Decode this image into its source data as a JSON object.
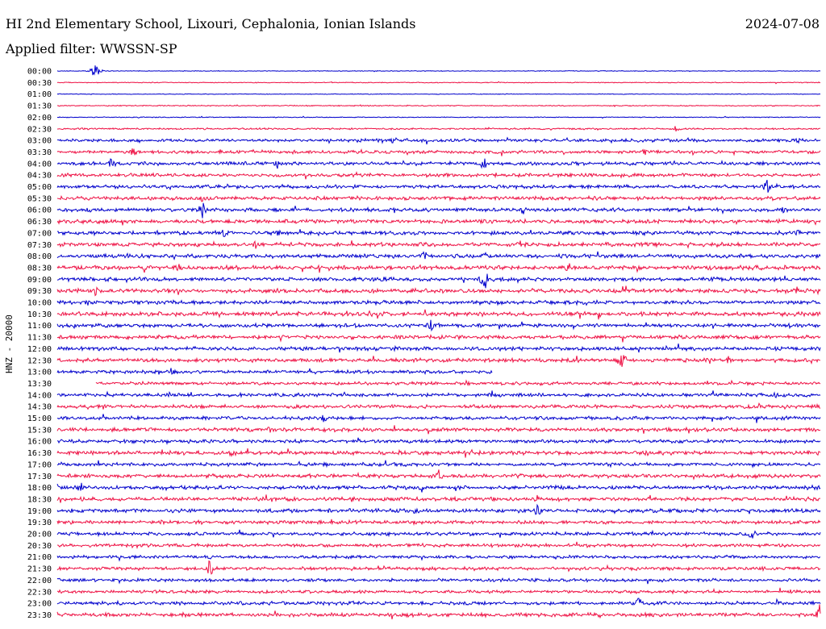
{
  "header": {
    "title": "HI 2nd Elementary School, Lixouri, Cephalonia, Ionian Islands",
    "date": "2024-07-08",
    "filter_label": "Applied filter: WWSSN-SP"
  },
  "chart_data": {
    "type": "line",
    "title": "HI 2nd Elementary School, Lixouri, Cephalonia, Ionian Islands",
    "subtitle": "Applied filter: WWSSN-SP",
    "ylabel": "HNZ - 20000",
    "xlabel": "",
    "row_labels": [
      "00:00",
      "00:30",
      "01:00",
      "01:30",
      "02:00",
      "02:30",
      "03:00",
      "03:30",
      "04:00",
      "04:30",
      "05:00",
      "05:30",
      "06:00",
      "06:30",
      "07:00",
      "07:30",
      "08:00",
      "08:30",
      "09:00",
      "09:30",
      "10:00",
      "10:30",
      "11:00",
      "11:30",
      "12:00",
      "12:30",
      "13:00",
      "13:30",
      "14:00",
      "14:30",
      "15:00",
      "15:30",
      "16:00",
      "16:30",
      "17:00",
      "17:30",
      "18:00",
      "18:30",
      "19:00",
      "19:30",
      "20:00",
      "20:30",
      "21:00",
      "21:30",
      "22:00",
      "22:30",
      "23:00",
      "23:30"
    ],
    "row_minutes": 30,
    "series_colors": [
      "#0000cc",
      "#ee1144"
    ],
    "traces": [
      {
        "noise": 0.4,
        "events": [
          [
            0.05,
            12
          ]
        ]
      },
      {
        "noise": 0.5,
        "events": []
      },
      {
        "noise": 0.4,
        "events": []
      },
      {
        "noise": 0.6,
        "events": []
      },
      {
        "noise": 0.5,
        "events": []
      },
      {
        "noise": 1.0,
        "events": [
          [
            0.81,
            5
          ]
        ]
      },
      {
        "noise": 1.8,
        "events": [
          [
            0.44,
            8
          ],
          [
            0.97,
            5
          ]
        ]
      },
      {
        "noise": 1.8,
        "events": [
          [
            0.1,
            7
          ],
          [
            0.77,
            6
          ]
        ]
      },
      {
        "noise": 2.0,
        "events": [
          [
            0.07,
            8
          ],
          [
            0.29,
            10
          ],
          [
            0.56,
            8
          ]
        ]
      },
      {
        "noise": 2.0,
        "events": []
      },
      {
        "noise": 2.0,
        "events": [
          [
            0.93,
            10
          ]
        ]
      },
      {
        "noise": 2.2,
        "events": [
          [
            0.19,
            6
          ]
        ]
      },
      {
        "noise": 2.2,
        "events": [
          [
            0.04,
            8
          ],
          [
            0.19,
            12
          ],
          [
            0.61,
            7
          ],
          [
            0.95,
            5
          ]
        ]
      },
      {
        "noise": 2.2,
        "events": []
      },
      {
        "noise": 2.2,
        "events": [
          [
            0.22,
            9
          ],
          [
            0.29,
            5
          ],
          [
            0.97,
            6
          ]
        ]
      },
      {
        "noise": 2.3,
        "events": [
          [
            0.26,
            6
          ]
        ]
      },
      {
        "noise": 2.2,
        "events": [
          [
            0.48,
            6
          ],
          [
            0.56,
            6
          ]
        ]
      },
      {
        "noise": 2.4,
        "events": [
          [
            0.16,
            9
          ],
          [
            0.67,
            8
          ]
        ]
      },
      {
        "noise": 2.2,
        "events": [
          [
            0.56,
            16
          ]
        ]
      },
      {
        "noise": 2.4,
        "events": [
          [
            0.05,
            7
          ],
          [
            0.97,
            6
          ]
        ]
      },
      {
        "noise": 2.2,
        "events": [
          [
            0.04,
            6
          ],
          [
            0.43,
            5
          ],
          [
            0.68,
            4
          ]
        ]
      },
      {
        "noise": 2.4,
        "events": [
          [
            0.41,
            5
          ]
        ]
      },
      {
        "noise": 2.2,
        "events": [
          [
            0.49,
            10
          ],
          [
            0.97,
            5
          ]
        ]
      },
      {
        "noise": 2.2,
        "events": [
          [
            0.45,
            5
          ]
        ]
      },
      {
        "noise": 2.2,
        "events": []
      },
      {
        "noise": 2.2,
        "events": [
          [
            0.74,
            16
          ],
          [
            0.88,
            6
          ]
        ]
      },
      {
        "noise": 2.0,
        "events": [
          [
            0.15,
            6
          ],
          [
            0.48,
            5
          ]
        ]
      },
      {
        "noise": 1.8,
        "events": []
      },
      {
        "noise": 2.0,
        "events": [
          [
            0.15,
            4
          ],
          [
            0.94,
            6
          ]
        ]
      },
      {
        "noise": 2.0,
        "events": []
      },
      {
        "noise": 2.0,
        "events": [
          [
            0.35,
            7
          ]
        ]
      },
      {
        "noise": 2.2,
        "events": [
          [
            0.28,
            9
          ]
        ]
      },
      {
        "noise": 2.0,
        "events": []
      },
      {
        "noise": 2.2,
        "events": [
          [
            0.23,
            8
          ],
          [
            0.77,
            6
          ]
        ]
      },
      {
        "noise": 2.0,
        "events": [
          [
            0.35,
            6
          ]
        ]
      },
      {
        "noise": 2.2,
        "events": [
          [
            0.5,
            8
          ]
        ]
      },
      {
        "noise": 2.2,
        "events": [
          [
            0.03,
            9
          ]
        ]
      },
      {
        "noise": 2.2,
        "events": [
          [
            0.63,
            7
          ]
        ]
      },
      {
        "noise": 2.2,
        "events": [
          [
            0.47,
            6
          ],
          [
            0.63,
            10
          ]
        ]
      },
      {
        "noise": 2.0,
        "events": []
      },
      {
        "noise": 2.0,
        "events": [
          [
            0.91,
            10
          ]
        ]
      },
      {
        "noise": 2.0,
        "events": []
      },
      {
        "noise": 1.8,
        "events": [
          [
            0.2,
            5
          ]
        ]
      },
      {
        "noise": 2.0,
        "events": [
          [
            0.2,
            14
          ]
        ]
      },
      {
        "noise": 1.8,
        "events": []
      },
      {
        "noise": 1.8,
        "events": []
      },
      {
        "noise": 2.0,
        "events": [
          [
            0.76,
            14
          ]
        ]
      },
      {
        "noise": 2.2,
        "events": [
          [
            1.0,
            18
          ]
        ]
      }
    ],
    "gaps": [
      {
        "row": 26,
        "from": 0.57,
        "to": 1.0
      },
      {
        "row": 27,
        "from": 0.0,
        "to": 0.05
      }
    ],
    "grid": false,
    "legend": "none"
  }
}
